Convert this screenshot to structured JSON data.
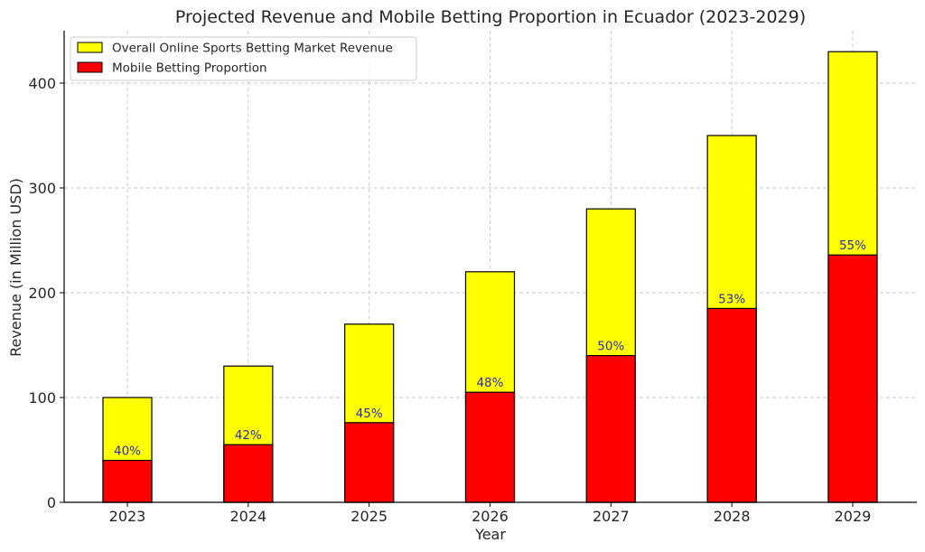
{
  "chart_data": {
    "type": "bar",
    "title": "Projected Revenue and Mobile Betting Proportion in Ecuador (2023-2029)",
    "xlabel": "Year",
    "ylabel": "Revenue (in Million USD)",
    "categories": [
      "2023",
      "2024",
      "2025",
      "2026",
      "2027",
      "2028",
      "2029"
    ],
    "ylim": [
      0,
      450
    ],
    "yticks": [
      0,
      100,
      200,
      300,
      400
    ],
    "grid": true,
    "legend_position": "top-left",
    "series": [
      {
        "name": "Overall Online Sports Betting Market Revenue",
        "color": "#ffff00",
        "values": [
          100,
          130,
          170,
          220,
          280,
          350,
          430
        ]
      },
      {
        "name": "Mobile Betting Proportion",
        "color": "#ff0000",
        "values": [
          40,
          55,
          76,
          105,
          140,
          185,
          236
        ]
      }
    ],
    "data_labels": [
      "40%",
      "42%",
      "45%",
      "48%",
      "50%",
      "53%",
      "55%"
    ],
    "data_label_color": "#2a2ab8"
  }
}
